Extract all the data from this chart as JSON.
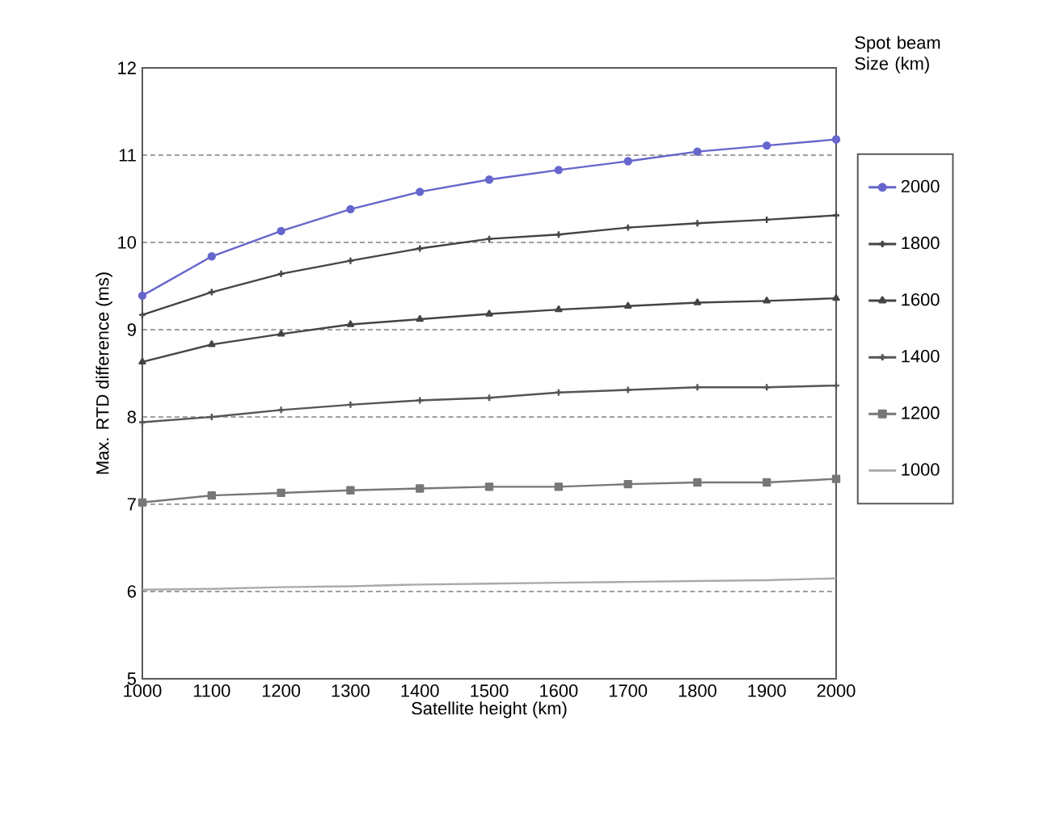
{
  "chart_data": {
    "type": "line",
    "xlabel": "Satellite height (km)",
    "ylabel": "Max. RTD difference (ms)",
    "legend_title": "Spot beam Size (km)",
    "x": [
      1000,
      1100,
      1200,
      1300,
      1400,
      1500,
      1600,
      1700,
      1800,
      1900,
      2000
    ],
    "xlim": [
      1000,
      2000
    ],
    "xticks": [
      1000,
      1100,
      1200,
      1300,
      1400,
      1500,
      1600,
      1700,
      1800,
      1900,
      2000
    ],
    "ylim": [
      5,
      12
    ],
    "yticks": [
      5,
      6,
      7,
      8,
      9,
      10,
      11,
      12
    ],
    "grid": "y",
    "legend": "right",
    "series": [
      {
        "name": "2000",
        "color": "#6666cc",
        "marker": "circle",
        "values": [
          9.39,
          9.84,
          10.13,
          10.38,
          10.58,
          10.72,
          10.83,
          10.93,
          11.04,
          11.11,
          11.18
        ]
      },
      {
        "name": "1800",
        "color": "#444444",
        "marker": "cross",
        "values": [
          9.17,
          9.43,
          9.64,
          9.79,
          9.93,
          10.04,
          10.09,
          10.17,
          10.22,
          10.26,
          10.31
        ]
      },
      {
        "name": "1600",
        "color": "#444444",
        "marker": "triangle",
        "values": [
          8.63,
          8.83,
          8.95,
          9.06,
          9.12,
          9.18,
          9.23,
          9.27,
          9.31,
          9.33,
          9.36
        ]
      },
      {
        "name": "1400",
        "color": "#555555",
        "marker": "cross",
        "values": [
          7.94,
          8.0,
          8.08,
          8.14,
          8.19,
          8.22,
          8.28,
          8.31,
          8.34,
          8.34,
          8.36
        ]
      },
      {
        "name": "1200",
        "color": "#777777",
        "marker": "square",
        "values": [
          7.02,
          7.1,
          7.13,
          7.16,
          7.18,
          7.2,
          7.2,
          7.23,
          7.25,
          7.25,
          7.29
        ]
      },
      {
        "name": "1000",
        "color": "#aaaaaa",
        "marker": "none",
        "values": [
          6.02,
          6.03,
          6.05,
          6.06,
          6.08,
          6.09,
          6.1,
          6.11,
          6.12,
          6.13,
          6.15
        ]
      }
    ]
  }
}
